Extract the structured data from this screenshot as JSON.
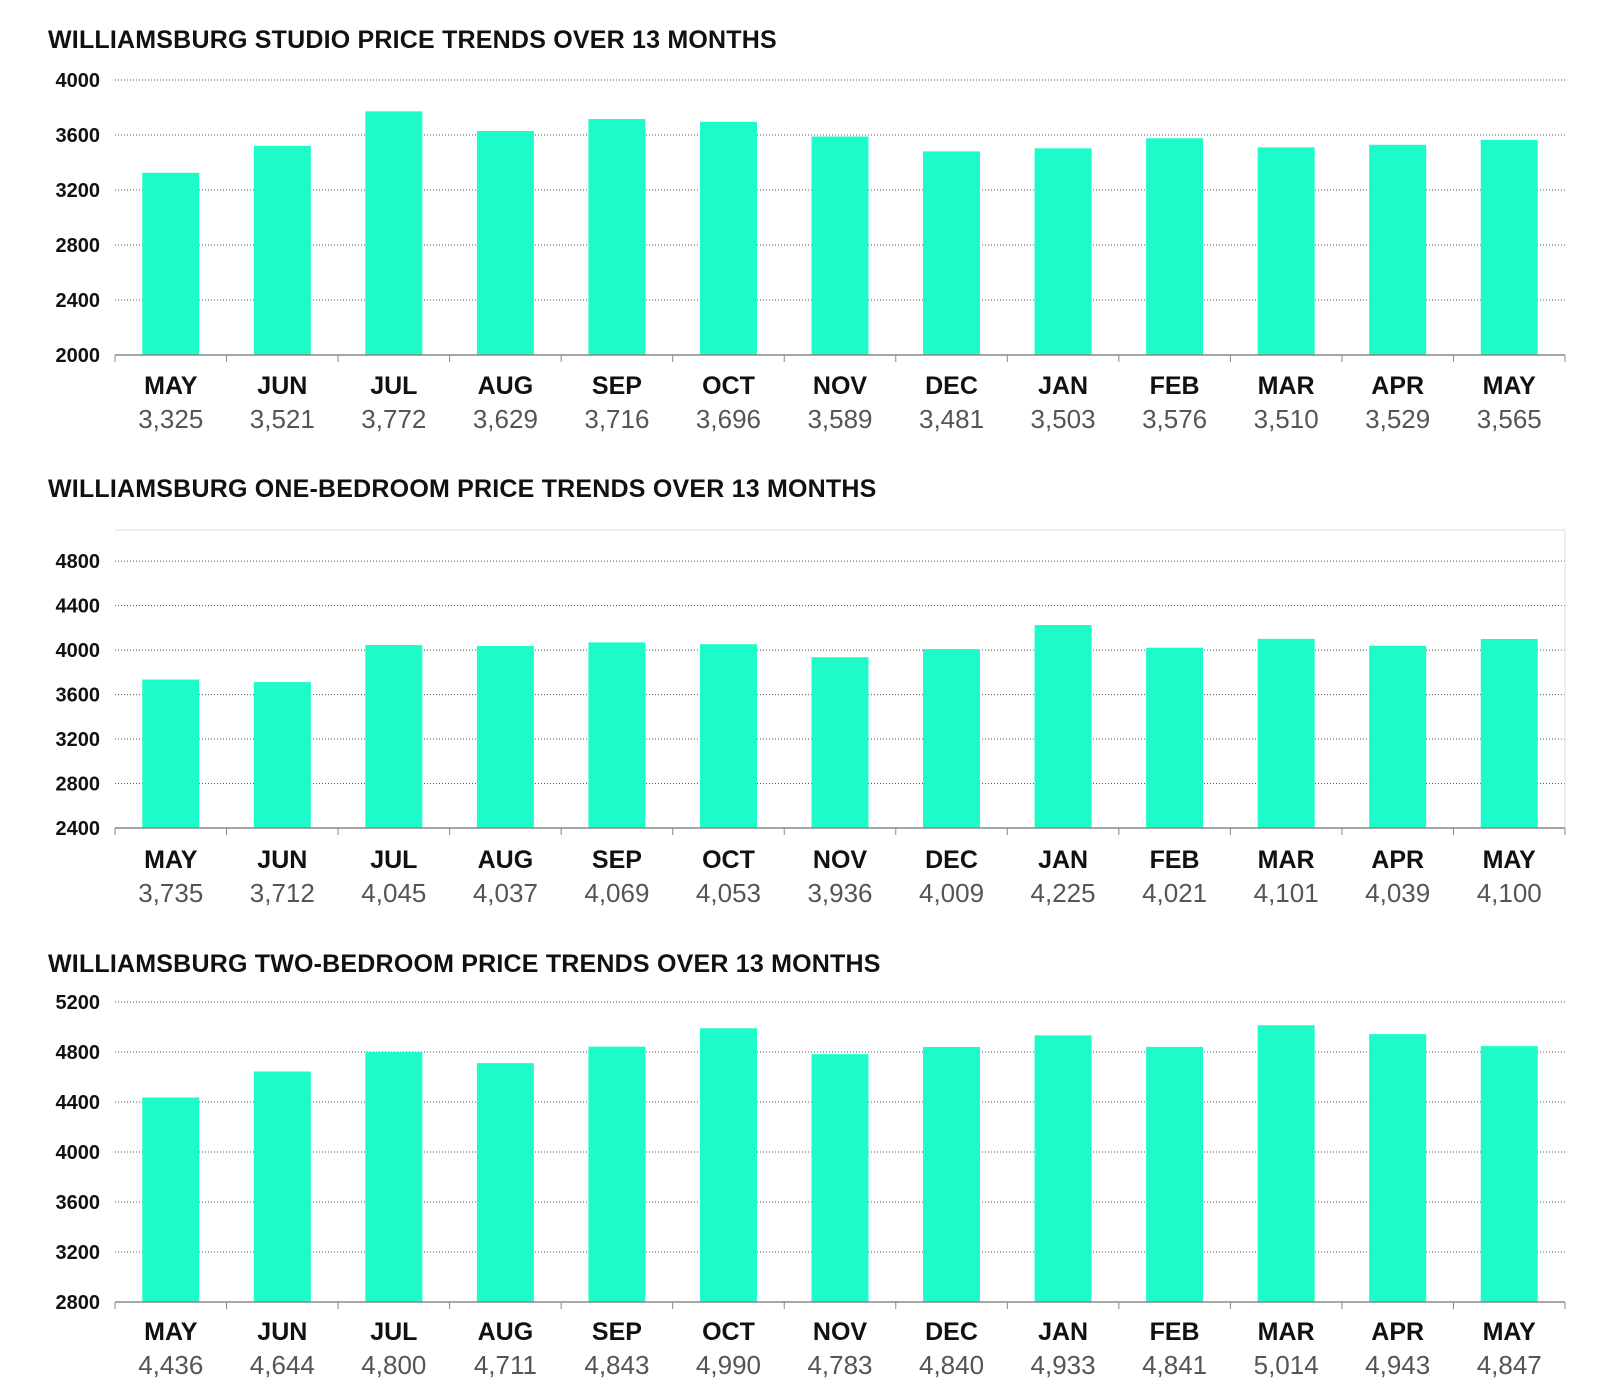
{
  "colors": {
    "bar": "#1cfbc8",
    "text": "#111111",
    "value_text": "#555555"
  },
  "chart_data": [
    {
      "type": "bar",
      "title": "WILLIAMSBURG STUDIO PRICE TRENDS OVER 13 MONTHS",
      "xlabel": "",
      "ylabel": "",
      "categories": [
        "MAY",
        "JUN",
        "JUL",
        "AUG",
        "SEP",
        "OCT",
        "NOV",
        "DEC",
        "JAN",
        "FEB",
        "MAR",
        "APR",
        "MAY"
      ],
      "values": [
        3325,
        3521,
        3772,
        3629,
        3716,
        3696,
        3589,
        3481,
        3503,
        3576,
        3510,
        3529,
        3565
      ],
      "value_labels": [
        "3,325",
        "3,521",
        "3,772",
        "3,629",
        "3,716",
        "3,696",
        "3,589",
        "3,481",
        "3,503",
        "3,576",
        "3,510",
        "3,529",
        "3,565"
      ],
      "yticks": [
        2000,
        2400,
        2800,
        3200,
        3600,
        4000
      ],
      "ylim": [
        2000,
        4000
      ],
      "grid": true
    },
    {
      "type": "bar",
      "title": "WILLIAMSBURG ONE-BEDROOM PRICE TRENDS OVER 13 MONTHS",
      "xlabel": "",
      "ylabel": "",
      "categories": [
        "MAY",
        "JUN",
        "JUL",
        "AUG",
        "SEP",
        "OCT",
        "NOV",
        "DEC",
        "JAN",
        "FEB",
        "MAR",
        "APR",
        "MAY"
      ],
      "values": [
        3735,
        3712,
        4045,
        4037,
        4069,
        4053,
        3936,
        4009,
        4225,
        4021,
        4101,
        4039,
        4100
      ],
      "value_labels": [
        "3,735",
        "3,712",
        "4,045",
        "4,037",
        "4,069",
        "4,053",
        "3,936",
        "4,009",
        "4,225",
        "4,021",
        "4,101",
        "4,039",
        "4,100"
      ],
      "yticks": [
        2400,
        2800,
        3200,
        3600,
        4000,
        4400,
        4800
      ],
      "ylim": [
        2400,
        5080
      ],
      "grid": true
    },
    {
      "type": "bar",
      "title": "WILLIAMSBURG TWO-BEDROOM PRICE TRENDS OVER 13 MONTHS",
      "xlabel": "",
      "ylabel": "",
      "categories": [
        "MAY",
        "JUN",
        "JUL",
        "AUG",
        "SEP",
        "OCT",
        "NOV",
        "DEC",
        "JAN",
        "FEB",
        "MAR",
        "APR",
        "MAY"
      ],
      "values": [
        4436,
        4644,
        4800,
        4711,
        4843,
        4990,
        4783,
        4840,
        4933,
        4841,
        5014,
        4943,
        4847
      ],
      "value_labels": [
        "4,436",
        "4,644",
        "4,800",
        "4,711",
        "4,843",
        "4,990",
        "4,783",
        "4,840",
        "4,933",
        "4,841",
        "5,014",
        "4,943",
        "4,847"
      ],
      "yticks": [
        2800,
        3200,
        3600,
        4000,
        4400,
        4800,
        5200
      ],
      "ylim": [
        2800,
        5200
      ],
      "grid": true
    }
  ]
}
